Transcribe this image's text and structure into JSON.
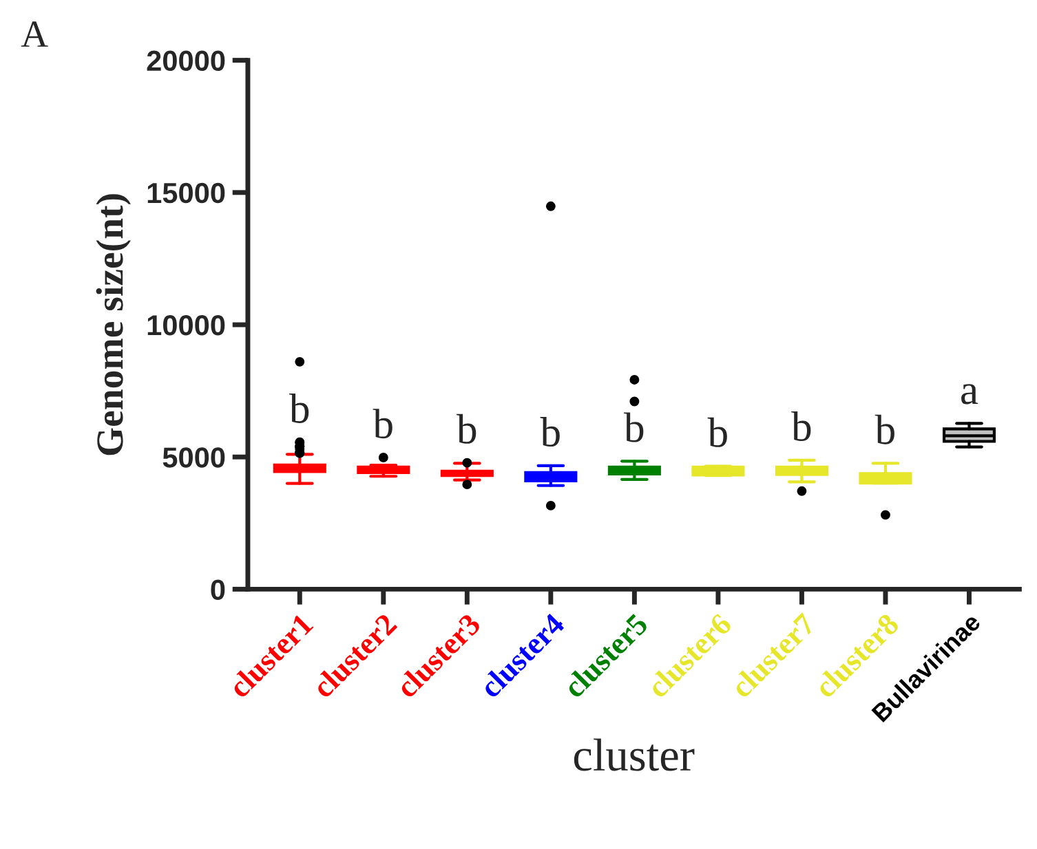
{
  "chart_data": {
    "type": "box",
    "xlabel": "cluster",
    "ylabel": "Genome size(nt)",
    "categories": [
      "cluster1",
      "cluster2",
      "cluster3",
      "cluster4",
      "cluster5",
      "cluster6",
      "cluster7",
      "cluster8",
      "Bullavirinae"
    ],
    "colors": [
      "#ff0000",
      "#ff0000",
      "#ff0000",
      "#0000ff",
      "#008000",
      "#e6e62a",
      "#e6e62a",
      "#e6e62a",
      "#c0c0c0"
    ],
    "boxes": [
      {
        "low": 4000,
        "q1": 4450,
        "median": 4600,
        "q3": 4700,
        "high": 5100,
        "outliers": [
          5150,
          5150,
          5150,
          5150,
          5300,
          5400,
          5400,
          5400,
          5400,
          5550,
          5560,
          8600
        ]
      },
      {
        "low": 4270,
        "q1": 4410,
        "median": 4530,
        "q3": 4620,
        "high": 4690,
        "outliers": [
          4980
        ]
      },
      {
        "low": 4130,
        "q1": 4300,
        "median": 4380,
        "q3": 4460,
        "high": 4760,
        "outliers": [
          4780,
          3960
        ]
      },
      {
        "low": 3920,
        "q1": 4100,
        "median": 4250,
        "q3": 4410,
        "high": 4670,
        "outliers": [
          3160,
          14480
        ]
      },
      {
        "low": 4150,
        "q1": 4360,
        "median": 4490,
        "q3": 4620,
        "high": 4840,
        "outliers": [
          7100,
          7920
        ]
      },
      {
        "low": 4300,
        "q1": 4320,
        "median": 4470,
        "q3": 4620,
        "high": 4650
      },
      {
        "low": 4060,
        "q1": 4340,
        "median": 4480,
        "q3": 4620,
        "high": 4880,
        "outliers": [
          3710
        ]
      },
      {
        "low": 4010,
        "q1": 4010,
        "median": 4240,
        "q3": 4375,
        "high": 4760,
        "outliers": [
          2810
        ]
      },
      {
        "low": 5380,
        "q1": 5590,
        "median": 5800,
        "q3": 6060,
        "high": 6270
      }
    ],
    "ylim": [
      0,
      20000
    ],
    "yticks": [
      0,
      5000,
      10000,
      15000,
      20000
    ],
    "grid": false,
    "annotations": [
      "A",
      "b",
      "b",
      "b",
      "b",
      "b",
      "b",
      "b",
      "b",
      "a"
    ]
  }
}
